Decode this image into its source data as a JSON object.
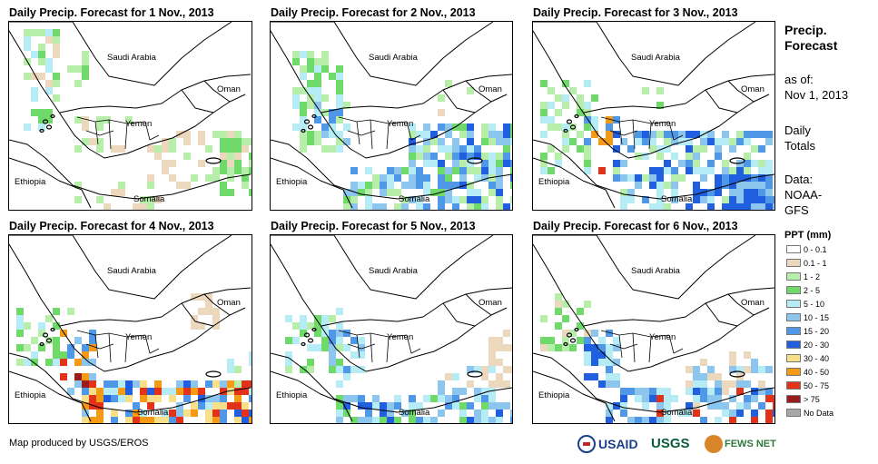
{
  "panels": [
    {
      "title": "Daily Precip. Forecast for 1 Nov., 2013",
      "day": 1
    },
    {
      "title": "Daily Precip. Forecast for 2 Nov., 2013",
      "day": 2
    },
    {
      "title": "Daily Precip. Forecast for 3 Nov., 2013",
      "day": 3
    },
    {
      "title": "Daily Precip. Forecast for 4 Nov., 2013",
      "day": 4
    },
    {
      "title": "Daily Precip. Forecast for 5 Nov., 2013",
      "day": 5
    },
    {
      "title": "Daily Precip. Forecast for 6 Nov., 2013",
      "day": 6
    }
  ],
  "map_labels": {
    "saudi": "Saudi Arabia",
    "oman": "Oman",
    "yemen": "Yemen",
    "ethiopia": "Ethiopia",
    "somalia": "Somalia"
  },
  "side": {
    "heading_line1": "Precip.",
    "heading_line2": "Forecast",
    "asof_line1": "as of:",
    "asof_line2": "Nov 1, 2013",
    "daily_line1": "Daily",
    "daily_line2": "Totals",
    "data_line1": "Data:",
    "data_line2": "NOAA-",
    "data_line3": "GFS"
  },
  "legend": {
    "title": "PPT (mm)",
    "items": [
      {
        "label": "0 - 0.1",
        "color": "#ffffff"
      },
      {
        "label": "0.1 - 1",
        "color": "#ecd9bd"
      },
      {
        "label": "1 - 2",
        "color": "#b7eeaa"
      },
      {
        "label": "2 - 5",
        "color": "#6fd96a"
      },
      {
        "label": "5 - 10",
        "color": "#b6ecf5"
      },
      {
        "label": "10 - 15",
        "color": "#8cc6ee"
      },
      {
        "label": "15 - 20",
        "color": "#4f98e8"
      },
      {
        "label": "20 - 30",
        "color": "#1f5fe0"
      },
      {
        "label": "30 - 40",
        "color": "#f8e08a"
      },
      {
        "label": "40 - 50",
        "color": "#f59a14"
      },
      {
        "label": "50 - 75",
        "color": "#e2321a"
      },
      {
        "label": "> 75",
        "color": "#9a1c1c"
      },
      {
        "label": "No Data",
        "color": "#a8a8a8"
      }
    ]
  },
  "footer": {
    "credit": "Map produced by USGS/EROS",
    "usaid": "USAID",
    "usgs": "USGS",
    "fews": "FEWS NET"
  }
}
